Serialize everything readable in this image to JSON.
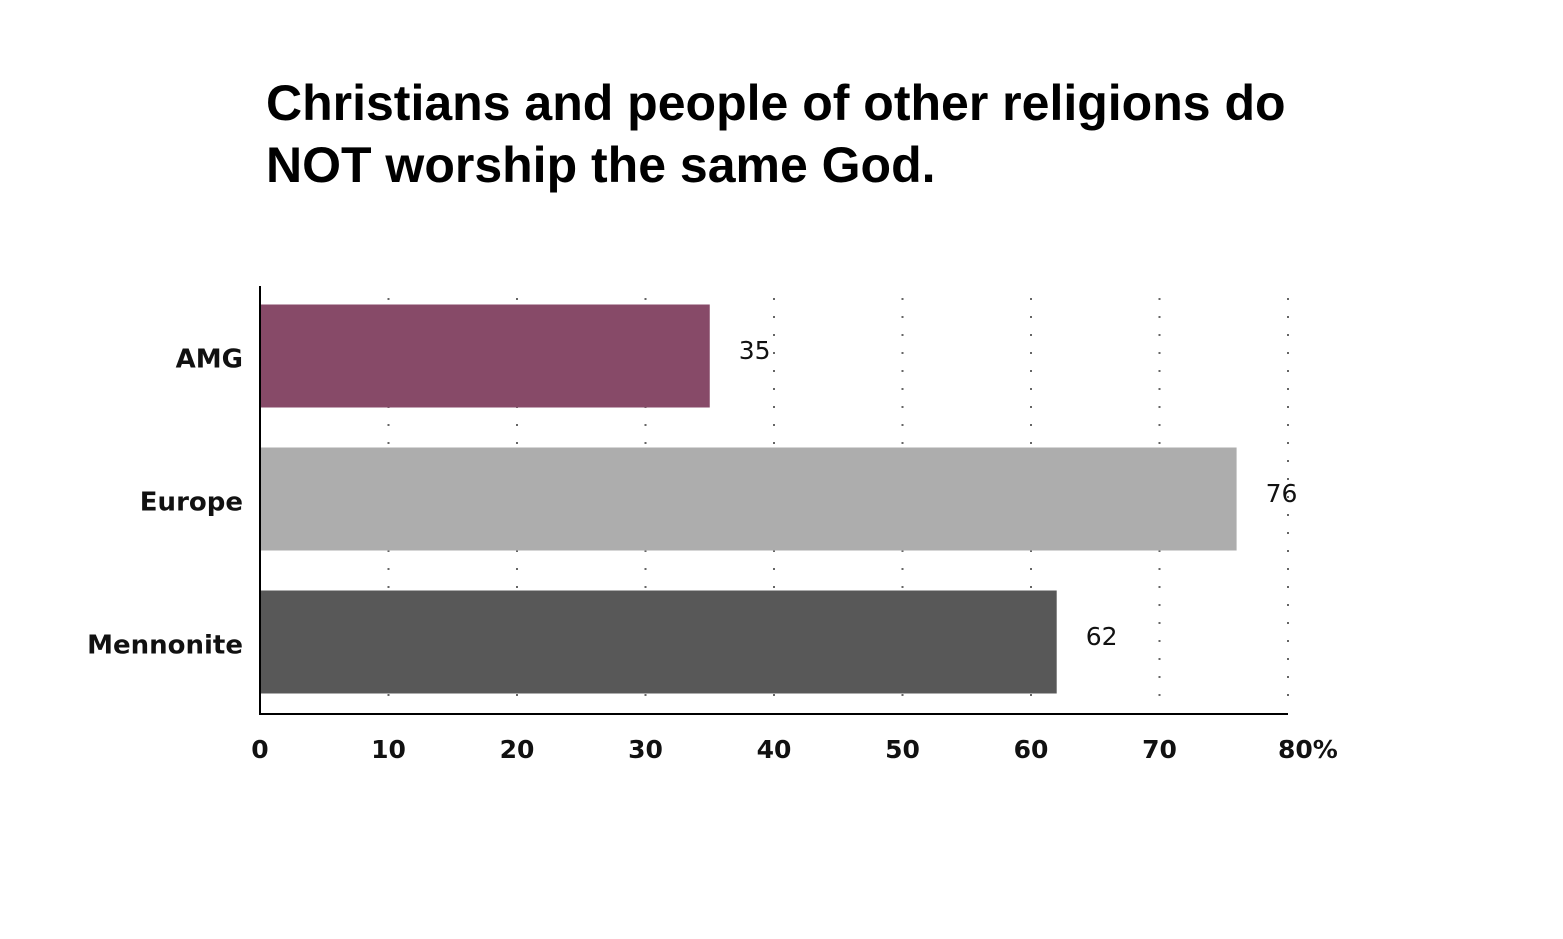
{
  "chart_data": {
    "type": "bar",
    "orientation": "horizontal",
    "title_lines": [
      "Christians and people of other religions do",
      "NOT worship the same God."
    ],
    "categories": [
      "AMG",
      "Europe",
      "Mennonite"
    ],
    "values": [
      35,
      76,
      62
    ],
    "value_labels": [
      "35",
      "76",
      "62"
    ],
    "colors": [
      "#874a68",
      "#adadad",
      "#585858"
    ],
    "xlim": [
      0,
      80
    ],
    "x_ticks": [
      0,
      10,
      20,
      30,
      40,
      50,
      60,
      70,
      80
    ],
    "x_tick_labels": [
      "0",
      "10",
      "20",
      "30",
      "40",
      "50",
      "60",
      "70",
      "80%"
    ],
    "grid": "vertical dotted",
    "legend": "none"
  }
}
